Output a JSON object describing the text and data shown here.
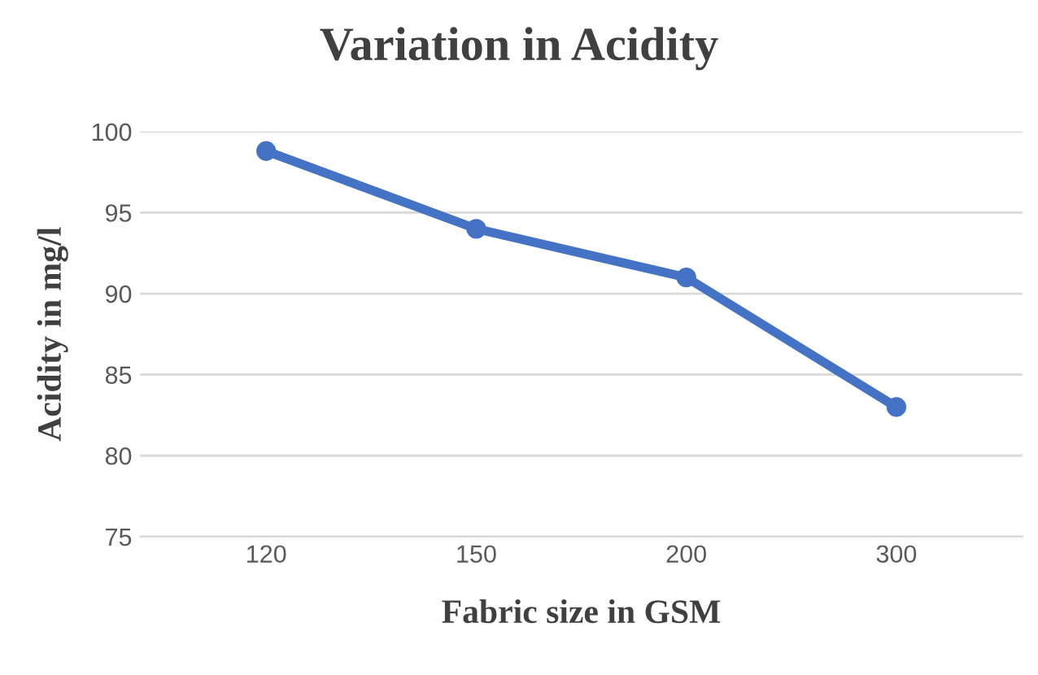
{
  "chart_data": {
    "type": "line",
    "title": "Variation in Acidity",
    "xlabel": "Fabric size in GSM",
    "ylabel": "Acidity in mg/l",
    "categories": [
      "120",
      "150",
      "200",
      "300"
    ],
    "series": [
      {
        "color": "#4472c4",
        "values": [
          98.8,
          94,
          91,
          83
        ]
      }
    ],
    "ylim": [
      75,
      100
    ],
    "yticks": [
      75,
      80,
      85,
      90,
      95,
      100
    ],
    "grid": "y",
    "marker": "circle",
    "line_style": "solid"
  }
}
